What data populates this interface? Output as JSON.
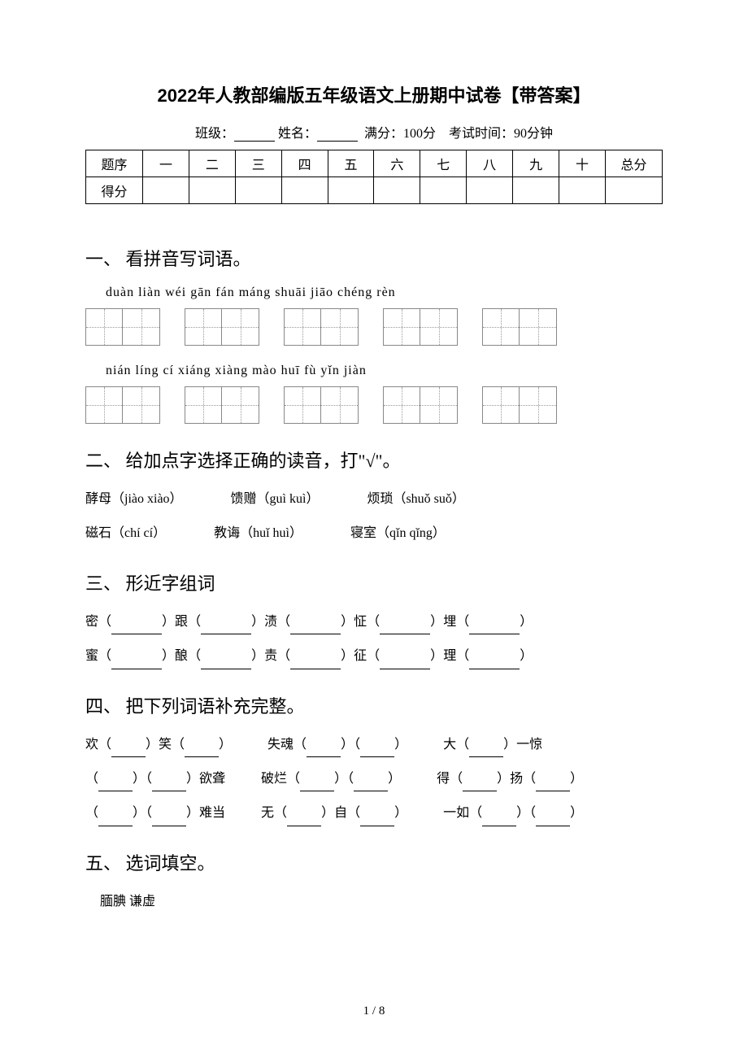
{
  "title": "2022年人教部编版五年级语文上册期中试卷【带答案】",
  "header": {
    "class_label": "班级：",
    "name_label": "姓名：",
    "full_score": "满分：100分",
    "exam_time": "考试时间：90分钟"
  },
  "score_table": {
    "row1": [
      "题序",
      "一",
      "二",
      "三",
      "四",
      "五",
      "六",
      "七",
      "八",
      "九",
      "十",
      "总分"
    ],
    "row2_label": "得分"
  },
  "section1": {
    "heading": "一、 看拼音写词语。",
    "pinyin_row1": "duàn liàn   wéi gān     fán máng   shuāi jiāo   chéng rèn",
    "pinyin_row2": "nián líng   cí xiáng   xiàng mào   huī fù      yǐn jiàn"
  },
  "section2": {
    "heading": "二、 给加点字选择正确的读音，打\"√\"。",
    "items": {
      "l1a": "酵母（jiào xiào）",
      "l1b": "馈赠（guì kuì）",
      "l1c": "烦琐（shuǒ suǒ）",
      "l2a": "磁石（chí cí）",
      "l2b": "教诲（huǐ huì）",
      "l2c": "寝室（qǐn qǐng）"
    }
  },
  "section3": {
    "heading": "三、 形近字组词",
    "chars": {
      "r1": [
        "密",
        "跟",
        "渍",
        "怔",
        "埋"
      ],
      "r2": [
        "蜜",
        "酿",
        "责",
        "征",
        "理"
      ]
    }
  },
  "section4": {
    "heading": "四、 把下列词语补充完整。",
    "items": {
      "l1": {
        "a1": "欢（",
        "a2": "）笑（",
        "a3": "）",
        "b1": "失魂（",
        "b2": "）（",
        "b3": "）",
        "c1": "大（",
        "c2": "）一惊"
      },
      "l2": {
        "a1": "（",
        "a2": "）（",
        "a3": "）欲聋",
        "b1": "破烂（",
        "b2": "）（",
        "b3": "）",
        "c1": "得（",
        "c2": "）扬（",
        "c3": "）"
      },
      "l3": {
        "a1": "（",
        "a2": "）（",
        "a3": "）难当",
        "b1": "无（",
        "b2": "）自（",
        "b3": "）",
        "c1": "一如（",
        "c2": "）（",
        "c3": "）"
      }
    }
  },
  "section5": {
    "heading": "五、 选词填空。",
    "words": "腼腆       谦虚"
  },
  "page_number": "1 / 8"
}
